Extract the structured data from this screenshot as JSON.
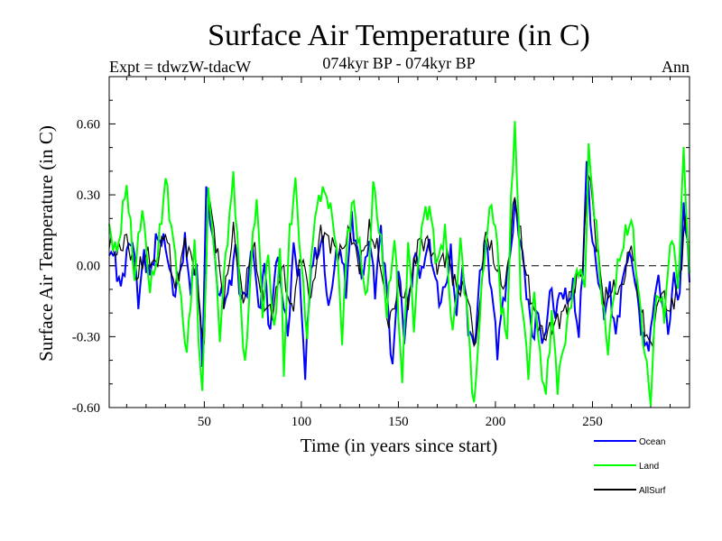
{
  "chart_data": {
    "type": "line",
    "title": "Surface Air Temperature (in C)",
    "subtitle_left": "Expt = tdwzW-tdacW",
    "subtitle_center": "074kyr BP - 074kyr BP",
    "subtitle_right": "Ann",
    "xlabel": "Time (in years since start)",
    "ylabel": "Surface Air Temperature (in C)",
    "xlim": [
      1,
      300
    ],
    "ylim": [
      -0.6,
      0.8
    ],
    "xticks": [
      50,
      100,
      150,
      200,
      250
    ],
    "xtick_labels": [
      "50",
      "100",
      "150",
      "200",
      "250"
    ],
    "yticks": [
      -0.6,
      -0.3,
      0.0,
      0.3,
      0.6
    ],
    "ytick_labels": [
      "-0.60",
      "-0.30",
      "0.00",
      "0.30",
      "0.60"
    ],
    "zero_line": true,
    "legend_position": "bottom-right",
    "series": [
      {
        "name": "Land",
        "color": "#00ff00",
        "keypoints": [
          [
            1,
            0.15
          ],
          [
            5,
            0.05
          ],
          [
            10,
            0.35
          ],
          [
            14,
            -0.05
          ],
          [
            18,
            0.25
          ],
          [
            22,
            -0.1
          ],
          [
            26,
            0.05
          ],
          [
            30,
            0.37
          ],
          [
            34,
            0.1
          ],
          [
            38,
            -0.15
          ],
          [
            41,
            -0.38
          ],
          [
            45,
            0.1
          ],
          [
            48,
            -0.45
          ],
          [
            49,
            -0.54
          ],
          [
            52,
            0.3
          ],
          [
            55,
            0.1
          ],
          [
            58,
            -0.3
          ],
          [
            61,
            0.05
          ],
          [
            64,
            0.28
          ],
          [
            65,
            0.4
          ],
          [
            68,
            -0.05
          ],
          [
            71,
            -0.45
          ],
          [
            74,
            0.0
          ],
          [
            77,
            0.3
          ],
          [
            80,
            -0.2
          ],
          [
            83,
            0.05
          ],
          [
            86,
            -0.3
          ],
          [
            89,
            0.08
          ],
          [
            91,
            -0.43
          ],
          [
            94,
            0.15
          ],
          [
            97,
            0.35
          ],
          [
            100,
            0.0
          ],
          [
            103,
            -0.3
          ],
          [
            106,
            0.15
          ],
          [
            110,
            0.32
          ],
          [
            114,
            0.28
          ],
          [
            118,
            0.1
          ],
          [
            121,
            -0.3
          ],
          [
            124,
            0.15
          ],
          [
            127,
            0.27
          ],
          [
            131,
            0.0
          ],
          [
            134,
            -0.15
          ],
          [
            137,
            0.35
          ],
          [
            141,
            0.1
          ],
          [
            144,
            -0.2
          ],
          [
            148,
            0.12
          ],
          [
            152,
            -0.5
          ],
          [
            155,
            0.1
          ],
          [
            158,
            -0.25
          ],
          [
            162,
            0.18
          ],
          [
            166,
            0.25
          ],
          [
            170,
            0.0
          ],
          [
            174,
            0.15
          ],
          [
            178,
            -0.3
          ],
          [
            182,
            0.1
          ],
          [
            186,
            -0.25
          ],
          [
            189,
            -0.62
          ],
          [
            192,
            -0.2
          ],
          [
            195,
            0.1
          ],
          [
            198,
            0.27
          ],
          [
            201,
            0.08
          ],
          [
            203,
            -0.18
          ],
          [
            206,
            -0.3
          ],
          [
            208,
            0.25
          ],
          [
            210,
            0.62
          ],
          [
            213,
            -0.1
          ],
          [
            217,
            -0.45
          ],
          [
            220,
            -0.1
          ],
          [
            223,
            -0.4
          ],
          [
            226,
            -0.55
          ],
          [
            229,
            -0.2
          ],
          [
            232,
            -0.5
          ],
          [
            236,
            -0.3
          ],
          [
            240,
            -0.1
          ],
          [
            243,
            0.0
          ],
          [
            246,
            -0.1
          ],
          [
            248,
            0.48
          ],
          [
            252,
            0.15
          ],
          [
            255,
            -0.15
          ],
          [
            258,
            -0.35
          ],
          [
            262,
            -0.05
          ],
          [
            266,
            0.1
          ],
          [
            270,
            0.2
          ],
          [
            273,
            -0.05
          ],
          [
            276,
            -0.3
          ],
          [
            280,
            -0.57
          ],
          [
            283,
            -0.1
          ],
          [
            287,
            -0.2
          ],
          [
            291,
            0.15
          ],
          [
            294,
            -0.1
          ],
          [
            297,
            0.48
          ],
          [
            300,
            -0.05
          ]
        ]
      },
      {
        "name": "Ocean",
        "color": "#0000ff",
        "keypoints": [
          [
            1,
            0.08
          ],
          [
            4,
            0.02
          ],
          [
            7,
            -0.1
          ],
          [
            10,
            0.05
          ],
          [
            13,
            0.12
          ],
          [
            16,
            -0.15
          ],
          [
            19,
            0.05
          ],
          [
            22,
            -0.05
          ],
          [
            25,
            0.1
          ],
          [
            28,
            0.12
          ],
          [
            31,
            0.05
          ],
          [
            34,
            -0.12
          ],
          [
            37,
            -0.05
          ],
          [
            40,
            0.1
          ],
          [
            43,
            -0.1
          ],
          [
            46,
            0.02
          ],
          [
            49,
            -0.4
          ],
          [
            51,
            0.32
          ],
          [
            54,
            0.15
          ],
          [
            57,
            -0.1
          ],
          [
            60,
            -0.15
          ],
          [
            63,
            -0.1
          ],
          [
            66,
            0.08
          ],
          [
            69,
            -0.15
          ],
          [
            72,
            -0.1
          ],
          [
            75,
            0.1
          ],
          [
            78,
            -0.2
          ],
          [
            81,
            0.0
          ],
          [
            84,
            -0.3
          ],
          [
            87,
            0.05
          ],
          [
            90,
            -0.1
          ],
          [
            93,
            -0.3
          ],
          [
            96,
            0.08
          ],
          [
            99,
            -0.05
          ],
          [
            102,
            -0.45
          ],
          [
            105,
            0.0
          ],
          [
            108,
            0.05
          ],
          [
            111,
            0.1
          ],
          [
            114,
            -0.2
          ],
          [
            117,
            0.0
          ],
          [
            120,
            0.08
          ],
          [
            123,
            -0.1
          ],
          [
            126,
            0.2
          ],
          [
            129,
            0.05
          ],
          [
            132,
            -0.05
          ],
          [
            135,
            0.12
          ],
          [
            138,
            -0.1
          ],
          [
            141,
            0.15
          ],
          [
            144,
            -0.1
          ],
          [
            147,
            -0.45
          ],
          [
            150,
            0.0
          ],
          [
            153,
            -0.3
          ],
          [
            156,
            -0.1
          ],
          [
            159,
            0.05
          ],
          [
            162,
            -0.05
          ],
          [
            165,
            0.1
          ],
          [
            168,
            0.0
          ],
          [
            171,
            -0.15
          ],
          [
            174,
            -0.1
          ],
          [
            177,
            0.05
          ],
          [
            180,
            -0.2
          ],
          [
            183,
            0.0
          ],
          [
            186,
            -0.25
          ],
          [
            189,
            -0.35
          ],
          [
            192,
            -0.05
          ],
          [
            195,
            0.1
          ],
          [
            198,
            -0.1
          ],
          [
            201,
            -0.35
          ],
          [
            204,
            -0.15
          ],
          [
            207,
            0.0
          ],
          [
            210,
            0.25
          ],
          [
            213,
            0.1
          ],
          [
            216,
            -0.1
          ],
          [
            219,
            -0.3
          ],
          [
            222,
            -0.2
          ],
          [
            225,
            -0.35
          ],
          [
            228,
            -0.1
          ],
          [
            231,
            -0.2
          ],
          [
            234,
            -0.1
          ],
          [
            237,
            -0.15
          ],
          [
            240,
            -0.1
          ],
          [
            243,
            -0.3
          ],
          [
            245,
            0.0
          ],
          [
            247,
            0.43
          ],
          [
            250,
            0.1
          ],
          [
            253,
            -0.05
          ],
          [
            256,
            -0.2
          ],
          [
            259,
            -0.1
          ],
          [
            262,
            -0.3
          ],
          [
            265,
            -0.1
          ],
          [
            268,
            0.05
          ],
          [
            271,
            0.0
          ],
          [
            274,
            -0.2
          ],
          [
            277,
            -0.35
          ],
          [
            280,
            -0.3
          ],
          [
            283,
            -0.05
          ],
          [
            286,
            -0.15
          ],
          [
            289,
            -0.28
          ],
          [
            292,
            -0.05
          ],
          [
            295,
            -0.15
          ],
          [
            297,
            0.28
          ],
          [
            300,
            -0.05
          ]
        ]
      },
      {
        "name": "AllSurf",
        "color": "#000000",
        "keypoints": [
          [
            1,
            0.1
          ],
          [
            5,
            0.05
          ],
          [
            10,
            0.12
          ],
          [
            15,
            -0.05
          ],
          [
            20,
            0.05
          ],
          [
            25,
            0.0
          ],
          [
            30,
            0.15
          ],
          [
            35,
            -0.1
          ],
          [
            40,
            0.1
          ],
          [
            45,
            0.0
          ],
          [
            50,
            -0.35
          ],
          [
            52,
            0.3
          ],
          [
            56,
            0.1
          ],
          [
            60,
            -0.15
          ],
          [
            65,
            0.15
          ],
          [
            70,
            -0.15
          ],
          [
            75,
            0.1
          ],
          [
            80,
            -0.15
          ],
          [
            85,
            -0.2
          ],
          [
            90,
            0.0
          ],
          [
            95,
            -0.2
          ],
          [
            100,
            0.05
          ],
          [
            105,
            -0.15
          ],
          [
            110,
            0.15
          ],
          [
            115,
            0.1
          ],
          [
            120,
            0.05
          ],
          [
            125,
            0.15
          ],
          [
            130,
            0.0
          ],
          [
            135,
            0.15
          ],
          [
            140,
            0.05
          ],
          [
            145,
            -0.25
          ],
          [
            150,
            -0.1
          ],
          [
            155,
            -0.15
          ],
          [
            160,
            0.1
          ],
          [
            165,
            0.1
          ],
          [
            170,
            0.0
          ],
          [
            175,
            0.05
          ],
          [
            180,
            -0.1
          ],
          [
            185,
            -0.1
          ],
          [
            190,
            -0.35
          ],
          [
            195,
            0.15
          ],
          [
            200,
            0.0
          ],
          [
            205,
            -0.1
          ],
          [
            210,
            0.3
          ],
          [
            215,
            0.0
          ],
          [
            220,
            -0.2
          ],
          [
            225,
            -0.3
          ],
          [
            230,
            -0.25
          ],
          [
            235,
            -0.2
          ],
          [
            240,
            -0.1
          ],
          [
            245,
            0.0
          ],
          [
            248,
            0.42
          ],
          [
            252,
            0.1
          ],
          [
            256,
            -0.15
          ],
          [
            260,
            -0.1
          ],
          [
            265,
            -0.1
          ],
          [
            270,
            0.1
          ],
          [
            275,
            -0.2
          ],
          [
            280,
            -0.35
          ],
          [
            285,
            -0.1
          ],
          [
            290,
            -0.2
          ],
          [
            295,
            -0.05
          ],
          [
            298,
            0.2
          ],
          [
            300,
            0.0
          ]
        ]
      }
    ],
    "legend": [
      {
        "name": "Ocean",
        "color": "#0000ff"
      },
      {
        "name": "Land",
        "color": "#00ff00"
      },
      {
        "name": "AllSurf",
        "color": "#000000"
      }
    ]
  }
}
